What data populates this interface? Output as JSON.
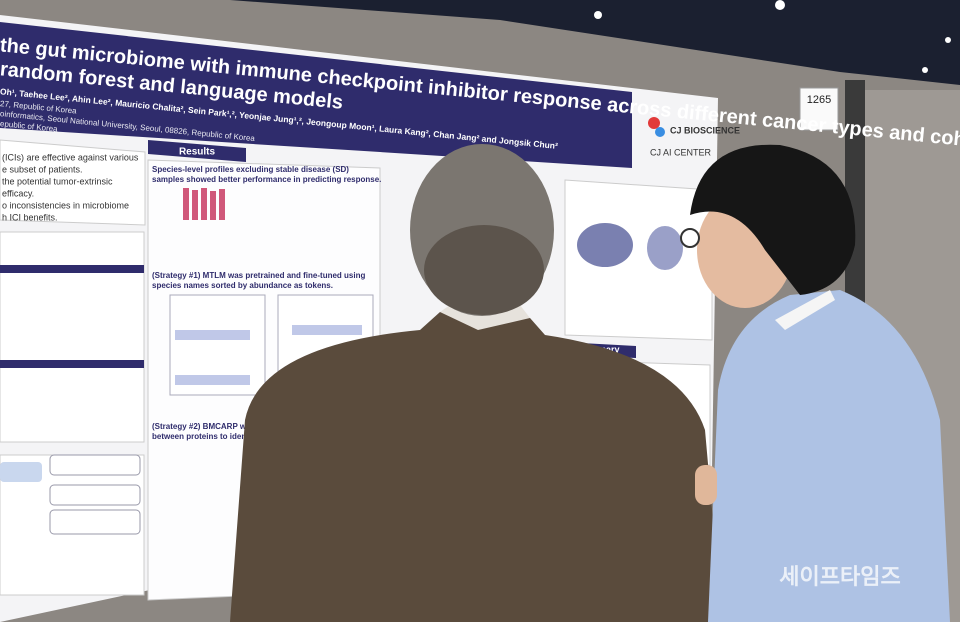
{
  "poster": {
    "title": [
      "the gut microbiome with immune checkpoint inhibitor response across different cancer types and cohorts",
      "random forest and language models"
    ],
    "authors": "Oh¹, Taehee Lee², Ahin Lee², Mauricio Chalita², Sein Park¹,², Yeonjae Jung¹,², Jeongoup Moon¹, Laura Kang², Chan Jang² and Jongsik Chun²",
    "affiliations": [
      "27, Republic of Korea",
      "oinformatics, Seoul National University, Seoul, 08826, Republic of Korea",
      "epublic of Korea"
    ],
    "logo": [
      "CJ BIOSCIENCE",
      "CJ AI CENTER"
    ],
    "intro": [
      "(ICIs) are effective against various",
      "e subset of patients.",
      "the potential tumor-extrinsic",
      "efficacy.",
      "o inconsistencies in microbiome",
      "h ICI benefits."
    ],
    "results": {
      "heading": "Results",
      "items": [
        "Species-level profiles excluding stable disease (SD)",
        "samples showed better performance in predicting response.",
        "(Strategy #1) MTLM was pretrained and fine-tuned using",
        "species names sorted by abundance as tokens.",
        "(Strategy #2) BMCARP was",
        "between proteins to identi"
      ]
    },
    "summary": "Summary"
  },
  "booth_number": "1265",
  "watermark": "세이프타임즈"
}
